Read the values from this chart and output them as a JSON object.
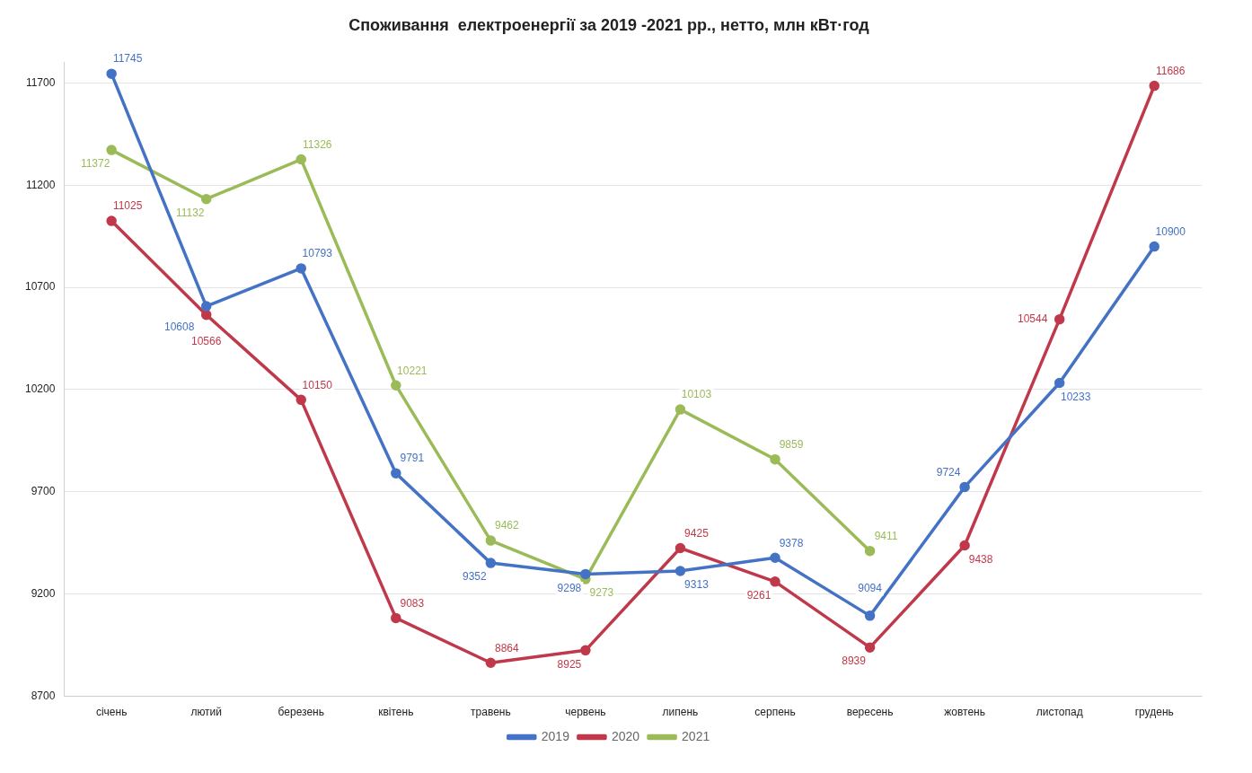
{
  "chart_data": {
    "type": "line",
    "title": "Споживання  електроенергії за 2019 -2021 рр., нетто, млн кВт·год",
    "categories": [
      "січень",
      "лютий",
      "березень",
      "квітень",
      "травень",
      "червень",
      "липень",
      "серпень",
      "вересень",
      "жовтень",
      "листопад",
      "грудень"
    ],
    "series": [
      {
        "name": "2019",
        "color": "#4472c4",
        "values": [
          11745,
          10608,
          10793,
          9791,
          9352,
          9298,
          9313,
          9378,
          9094,
          9724,
          10233,
          10900
        ]
      },
      {
        "name": "2020",
        "color": "#c0394b",
        "values": [
          11025,
          10566,
          10150,
          9083,
          8864,
          8925,
          9425,
          9261,
          8939,
          9438,
          10544,
          11686
        ]
      },
      {
        "name": "2021",
        "color": "#9bbb59",
        "values": [
          11372,
          11132,
          11326,
          10221,
          9462,
          9273,
          10103,
          9859,
          9411,
          null,
          null,
          null
        ]
      }
    ],
    "ylim": [
      8700,
      11800
    ],
    "yticks": [
      8700,
      9200,
      9700,
      10200,
      10700,
      11200,
      11700
    ],
    "grid": "y",
    "legend": "bottom",
    "marker": "circle",
    "line_style": "solid",
    "data_labels": true
  }
}
